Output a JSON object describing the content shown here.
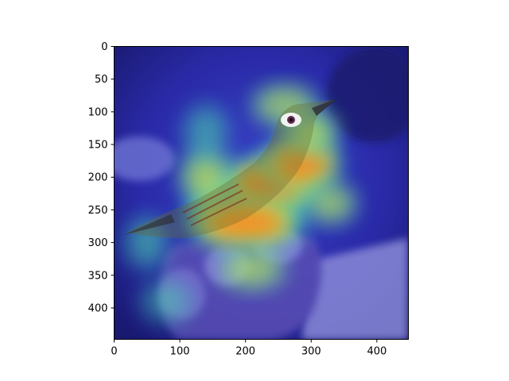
{
  "chart_data": {
    "type": "heatmap",
    "subtype": "attention heatmap (jet colormap) overlaid on a photo of a small bird held in a hand",
    "title": "",
    "xlabel": "",
    "ylabel": "",
    "xlim": [
      0,
      448
    ],
    "ylim": [
      448,
      0
    ],
    "y_inverted": true,
    "x_ticks": [
      0,
      100,
      200,
      300,
      400
    ],
    "y_ticks": [
      0,
      50,
      100,
      150,
      200,
      250,
      300,
      350,
      400
    ],
    "colormap": "jet",
    "grid": false,
    "colors": {
      "cold": "#2a2ad8",
      "cool": "#29c6e6",
      "mid": "#5ee38c",
      "warm": "#f3e23a",
      "hot": "#ff7a17",
      "peak": "#e11f1f"
    },
    "hotspots": [
      {
        "x": 195,
        "y": 245,
        "intensity": 1.0,
        "rx": 55,
        "ry": 22
      },
      {
        "x": 235,
        "y": 215,
        "intensity": 0.8,
        "rx": 60,
        "ry": 35
      },
      {
        "x": 200,
        "y": 270,
        "intensity": 0.7,
        "rx": 80,
        "ry": 30
      },
      {
        "x": 285,
        "y": 180,
        "intensity": 0.6,
        "rx": 55,
        "ry": 40
      },
      {
        "x": 300,
        "y": 130,
        "intensity": 0.5,
        "rx": 40,
        "ry": 30
      },
      {
        "x": 140,
        "y": 200,
        "intensity": 0.45,
        "rx": 40,
        "ry": 45
      },
      {
        "x": 260,
        "y": 90,
        "intensity": 0.35,
        "rx": 60,
        "ry": 35
      },
      {
        "x": 140,
        "y": 130,
        "intensity": 0.3,
        "rx": 40,
        "ry": 50
      },
      {
        "x": 330,
        "y": 240,
        "intensity": 0.35,
        "rx": 45,
        "ry": 35
      },
      {
        "x": 50,
        "y": 300,
        "intensity": 0.3,
        "rx": 40,
        "ry": 50
      },
      {
        "x": 80,
        "y": 390,
        "intensity": 0.25,
        "rx": 50,
        "ry": 40
      },
      {
        "x": 210,
        "y": 340,
        "intensity": 0.35,
        "rx": 60,
        "ry": 35
      }
    ]
  }
}
